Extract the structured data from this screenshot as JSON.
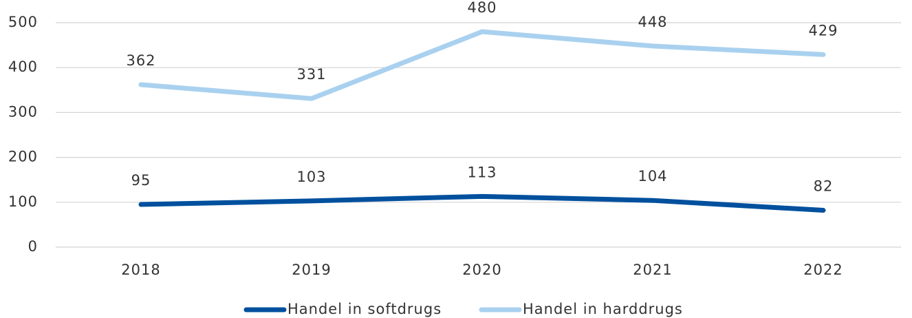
{
  "chart_data": {
    "type": "line",
    "categories": [
      "2018",
      "2019",
      "2020",
      "2021",
      "2022"
    ],
    "series": [
      {
        "name": "Handel in softdrugs",
        "color": "#00509e",
        "values": [
          95,
          103,
          113,
          104,
          82
        ]
      },
      {
        "name": "Handel in harddrugs",
        "color": "#a9d1ef",
        "values": [
          362,
          331,
          480,
          448,
          429
        ]
      }
    ],
    "ylim": [
      0,
      500
    ],
    "yticks": [
      0,
      100,
      200,
      300,
      400,
      500
    ],
    "grid": true,
    "legend": "bottom"
  }
}
